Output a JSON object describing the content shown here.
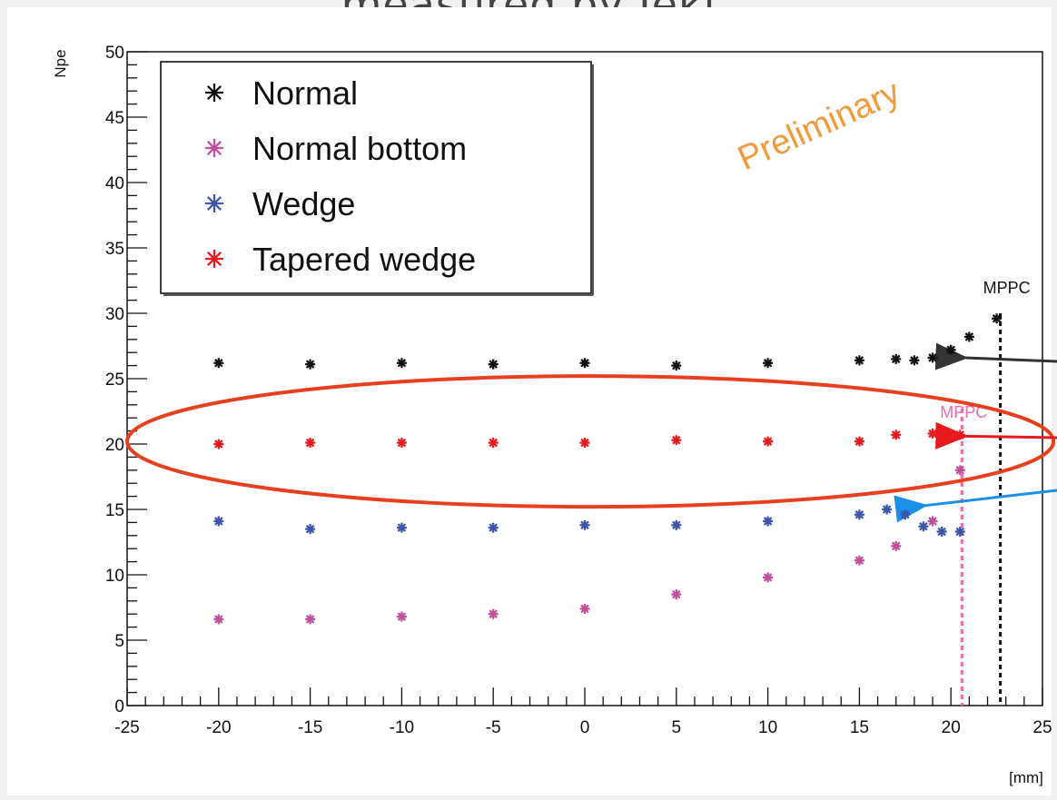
{
  "page": {
    "title": "measured by Ieki"
  },
  "chart_data": {
    "type": "scatter",
    "title": "",
    "xlabel": "[mm]",
    "ylabel": "Npe",
    "xlim": [
      -25,
      25
    ],
    "ylim": [
      0,
      50
    ],
    "xticks": [
      -25,
      -20,
      -15,
      -10,
      -5,
      0,
      5,
      10,
      15,
      20,
      25
    ],
    "yticks": [
      0,
      5,
      10,
      15,
      20,
      25,
      30,
      35,
      40,
      45,
      50
    ],
    "legend_position": "top-left",
    "watermark": "Preliminary",
    "series": [
      {
        "name": "Normal",
        "color": "#111111",
        "x": [
          -20,
          -15,
          -10,
          -5,
          0,
          5,
          10,
          15,
          17,
          18,
          19,
          20,
          21,
          22.5
        ],
        "y": [
          26.2,
          26.1,
          26.2,
          26.1,
          26.2,
          26.0,
          26.2,
          26.4,
          26.5,
          26.4,
          26.6,
          27.2,
          28.2,
          29.6
        ]
      },
      {
        "name": "Normal bottom",
        "color": "#c0509e",
        "x": [
          -20,
          -15,
          -10,
          -5,
          0,
          5,
          10,
          15,
          17,
          19,
          20.5
        ],
        "y": [
          6.6,
          6.6,
          6.8,
          7.0,
          7.4,
          8.5,
          9.8,
          11.1,
          12.2,
          14.1,
          18.0
        ]
      },
      {
        "name": "Wedge",
        "color": "#3b55a8",
        "x": [
          -20,
          -15,
          -10,
          -5,
          0,
          5,
          10,
          15,
          16.5,
          17.5,
          18.5,
          19.5,
          20.5
        ],
        "y": [
          14.1,
          13.5,
          13.6,
          13.6,
          13.8,
          13.8,
          14.1,
          14.6,
          15.0,
          14.6,
          13.7,
          13.3,
          13.3
        ]
      },
      {
        "name": "Tapered wedge",
        "color": "#e8191c",
        "x": [
          -20,
          -15,
          -10,
          -5,
          0,
          5,
          10,
          15,
          17,
          19,
          20.5
        ],
        "y": [
          20.0,
          20.1,
          20.1,
          20.1,
          20.1,
          20.3,
          20.2,
          20.2,
          20.7,
          20.8,
          20.7
        ]
      }
    ],
    "annotations": [
      {
        "text": "MPPC",
        "x": 22.7,
        "color": "#111111",
        "line_style": "dotted"
      },
      {
        "text": "MPPC",
        "x": 20.6,
        "color": "#ef6aa8",
        "line_style": "dotted"
      }
    ],
    "highlight": {
      "shape": "ellipse",
      "color": "#e8401f",
      "x_range": [
        -25,
        25.6
      ],
      "y_range": [
        15.2,
        25.2
      ]
    },
    "arrows": [
      {
        "color": "#333333",
        "points_to": [
          20.8,
          26.6
        ]
      },
      {
        "color": "#e8191c",
        "points_to": [
          20.8,
          20.6
        ]
      },
      {
        "color": "#1a8fe8",
        "points_to": [
          18.6,
          15.3
        ]
      }
    ]
  }
}
